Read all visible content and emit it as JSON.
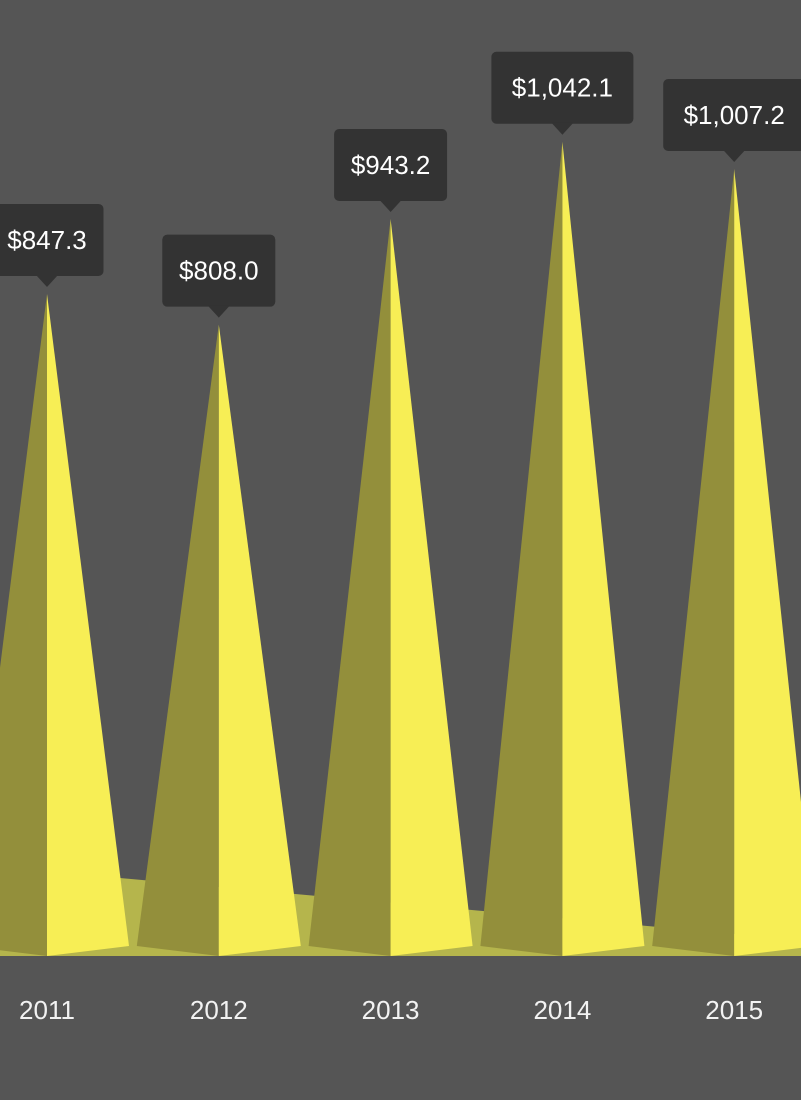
{
  "chart_data": {
    "type": "bar",
    "bar_shape": "pyramid",
    "categories": [
      "2011",
      "2012",
      "2013",
      "2014",
      "2015"
    ],
    "values": [
      847.3,
      808.0,
      943.2,
      1042.1,
      1007.2
    ],
    "data_labels": [
      "$847.3",
      "$808.0",
      "$943.2",
      "$1,042.1",
      "$1,007.2"
    ],
    "title": "",
    "xlabel": "",
    "ylabel": "",
    "ylim": [
      0,
      1180
    ],
    "grid": false,
    "legend": "none"
  },
  "colors": {
    "background": "#555555",
    "bar_light": "#f7ee55",
    "bar_dark": "#938f3b",
    "floor": "#b5b54c",
    "label_box": "#333333",
    "label_text": "#ffffff",
    "tick_text": "#f2f2f2"
  }
}
